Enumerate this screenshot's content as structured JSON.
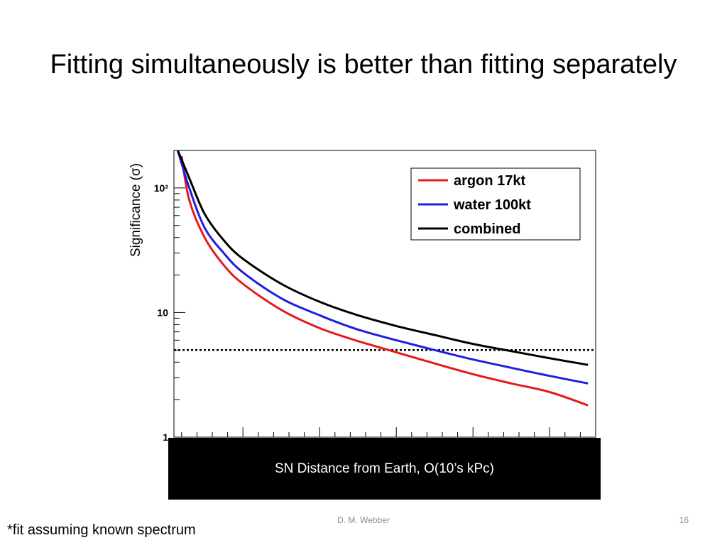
{
  "slide": {
    "title": "Fitting simultaneously is better than fitting separately",
    "author": "D. M. Webber",
    "page_number": "16",
    "footnote": "*fit assuming known spectrum"
  },
  "chart_data": {
    "type": "line",
    "ylabel": "Significance (σ)",
    "xlabel": "SN Distance from Earth, O(10’s kPc)",
    "yscale": "log",
    "ylim": [
      1,
      200
    ],
    "xlim": [
      0.1,
      5.6
    ],
    "y_ticks": [
      {
        "value": 1,
        "label": "1"
      },
      {
        "value": 10,
        "label": "10"
      },
      {
        "value": 100,
        "label": "10²"
      }
    ],
    "threshold_line": {
      "y": 5,
      "style": "dotted",
      "color": "#000000"
    },
    "legend": {
      "position": "top-right",
      "entries": [
        {
          "label": "argon 17kt",
          "color": "#e41a1c"
        },
        {
          "label": "water 100kt",
          "color": "#1f1fe0"
        },
        {
          "label": "combined",
          "color": "#000000"
        }
      ]
    },
    "series": [
      {
        "name": "argon 17kt",
        "color": "#e41a1c",
        "x": [
          0.2,
          0.3,
          0.5,
          0.75,
          1.0,
          1.5,
          2.0,
          2.5,
          3.0,
          3.5,
          4.0,
          4.5,
          5.0,
          5.5
        ],
        "y": [
          180,
          80,
          40,
          24,
          17,
          10.5,
          7.5,
          5.9,
          4.8,
          3.9,
          3.2,
          2.7,
          2.3,
          1.8
        ]
      },
      {
        "name": "water 100kt",
        "color": "#1f1fe0",
        "x": [
          0.15,
          0.3,
          0.5,
          0.75,
          1.0,
          1.5,
          2.0,
          2.5,
          3.0,
          3.5,
          4.0,
          4.5,
          5.0,
          5.5
        ],
        "y": [
          200,
          100,
          48,
          30,
          21,
          13,
          9.5,
          7.3,
          6.0,
          5.0,
          4.2,
          3.6,
          3.1,
          2.7
        ]
      },
      {
        "name": "combined",
        "color": "#000000",
        "x": [
          0.15,
          0.3,
          0.5,
          0.75,
          1.0,
          1.5,
          2.0,
          2.5,
          3.0,
          3.5,
          4.0,
          4.5,
          5.0,
          5.5
        ],
        "y": [
          200,
          120,
          62,
          38,
          27,
          17,
          12.2,
          9.5,
          7.8,
          6.6,
          5.6,
          4.9,
          4.3,
          3.8
        ]
      }
    ]
  }
}
